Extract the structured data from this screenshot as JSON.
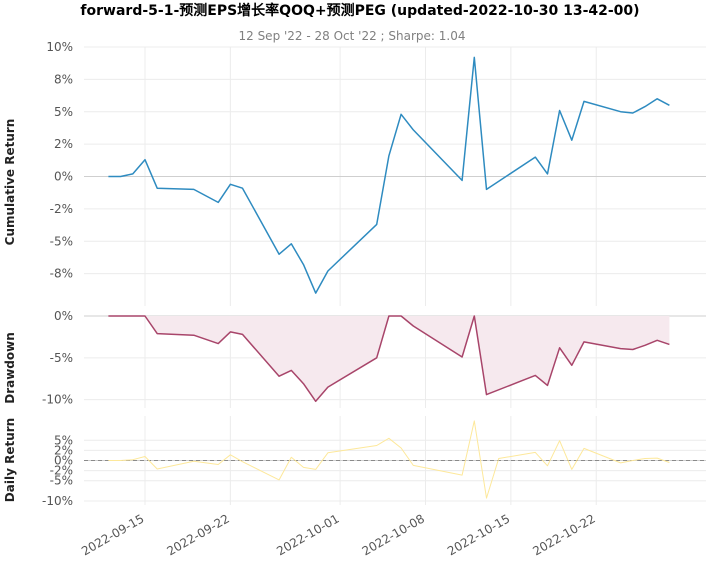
{
  "chart_data": {
    "type": "line",
    "title": "forward-5-1-预测EPS增长率QOQ+预测PEG (updated-2022-10-30 13-42-00)",
    "subtitle": "12 Sep '22 - 28 Oct '22 ;  Sharpe: 1.04",
    "x_ticks": [
      "2022-09-15",
      "2022-09-22",
      "2022-10-01",
      "2022-10-08",
      "2022-10-15",
      "2022-10-22"
    ],
    "x_range": [
      "2022-09-10",
      "2022-10-31"
    ],
    "panels": [
      {
        "name": "cumulative",
        "ylabel": "Cumulative Return",
        "ylim": [
          -0.1,
          0.1
        ],
        "y_ticks": [
          0.1,
          0.075,
          0.05,
          0.025,
          0.0,
          -0.025,
          -0.05,
          -0.075
        ],
        "y_tick_labels": [
          "10%",
          "8%",
          "5%",
          "2%",
          "0%",
          "-2%",
          "-5%",
          "-8%"
        ],
        "color": "#2e8bc0",
        "points": [
          [
            "2022-09-12",
            0.0
          ],
          [
            "2022-09-13",
            0.0
          ],
          [
            "2022-09-14",
            0.002
          ],
          [
            "2022-09-15",
            0.013
          ],
          [
            "2022-09-16",
            -0.009
          ],
          [
            "2022-09-19",
            -0.01
          ],
          [
            "2022-09-21",
            -0.02
          ],
          [
            "2022-09-22",
            -0.006
          ],
          [
            "2022-09-23",
            -0.009
          ],
          [
            "2022-09-26",
            -0.06
          ],
          [
            "2022-09-27",
            -0.052
          ],
          [
            "2022-09-28",
            -0.068
          ],
          [
            "2022-09-29",
            -0.09
          ],
          [
            "2022-09-30",
            -0.073
          ],
          [
            "2022-10-04",
            -0.037
          ],
          [
            "2022-10-05",
            0.016
          ],
          [
            "2022-10-06",
            0.048
          ],
          [
            "2022-10-07",
            0.036
          ],
          [
            "2022-10-11",
            -0.003
          ],
          [
            "2022-10-12",
            0.092
          ],
          [
            "2022-10-13",
            -0.01
          ],
          [
            "2022-10-17",
            0.015
          ],
          [
            "2022-10-18",
            0.002
          ],
          [
            "2022-10-19",
            0.051
          ],
          [
            "2022-10-20",
            0.028
          ],
          [
            "2022-10-21",
            0.058
          ],
          [
            "2022-10-24",
            0.05
          ],
          [
            "2022-10-25",
            0.049
          ],
          [
            "2022-10-26",
            0.054
          ],
          [
            "2022-10-27",
            0.06
          ],
          [
            "2022-10-28",
            0.055
          ]
        ]
      },
      {
        "name": "drawdown",
        "ylabel": "Drawdown",
        "ylim": [
          -0.11,
          0.0
        ],
        "y_ticks": [
          0.0,
          -0.05,
          -0.1
        ],
        "y_tick_labels": [
          "0%",
          "-5%",
          "-10%"
        ],
        "color": "#a8456a",
        "fill": "#f6e9ee",
        "points": [
          [
            "2022-09-12",
            0.0
          ],
          [
            "2022-09-13",
            0.0
          ],
          [
            "2022-09-14",
            0.0
          ],
          [
            "2022-09-15",
            0.0
          ],
          [
            "2022-09-16",
            -0.021
          ],
          [
            "2022-09-19",
            -0.023
          ],
          [
            "2022-09-21",
            -0.033
          ],
          [
            "2022-09-22",
            -0.019
          ],
          [
            "2022-09-23",
            -0.022
          ],
          [
            "2022-09-26",
            -0.072
          ],
          [
            "2022-09-27",
            -0.065
          ],
          [
            "2022-09-28",
            -0.081
          ],
          [
            "2022-09-29",
            -0.102
          ],
          [
            "2022-09-30",
            -0.085
          ],
          [
            "2022-10-04",
            -0.05
          ],
          [
            "2022-10-05",
            0.0
          ],
          [
            "2022-10-06",
            0.0
          ],
          [
            "2022-10-07",
            -0.012
          ],
          [
            "2022-10-11",
            -0.049
          ],
          [
            "2022-10-12",
            0.0
          ],
          [
            "2022-10-13",
            -0.094
          ],
          [
            "2022-10-17",
            -0.071
          ],
          [
            "2022-10-18",
            -0.083
          ],
          [
            "2022-10-19",
            -0.038
          ],
          [
            "2022-10-20",
            -0.059
          ],
          [
            "2022-10-21",
            -0.031
          ],
          [
            "2022-10-24",
            -0.039
          ],
          [
            "2022-10-25",
            -0.04
          ],
          [
            "2022-10-26",
            -0.035
          ],
          [
            "2022-10-27",
            -0.029
          ],
          [
            "2022-10-28",
            -0.034
          ]
        ]
      },
      {
        "name": "daily",
        "ylabel": "Daily Return",
        "ylim": [
          -0.11,
          0.11
        ],
        "y_ticks": [
          0.05,
          0.025,
          0.0,
          -0.025,
          -0.05,
          -0.1
        ],
        "y_tick_labels": [
          "5%",
          "2%",
          "0%",
          "-2%",
          "-5%",
          "-10%"
        ],
        "color": "#fde89a",
        "points": [
          [
            "2022-09-12",
            0.0
          ],
          [
            "2022-09-13",
            0.0
          ],
          [
            "2022-09-14",
            0.002
          ],
          [
            "2022-09-15",
            0.01
          ],
          [
            "2022-09-16",
            -0.021
          ],
          [
            "2022-09-19",
            -0.002
          ],
          [
            "2022-09-21",
            -0.01
          ],
          [
            "2022-09-22",
            0.014
          ],
          [
            "2022-09-23",
            -0.003
          ],
          [
            "2022-09-26",
            -0.048
          ],
          [
            "2022-09-27",
            0.008
          ],
          [
            "2022-09-28",
            -0.017
          ],
          [
            "2022-09-29",
            -0.022
          ],
          [
            "2022-09-30",
            0.019
          ],
          [
            "2022-10-04",
            0.037
          ],
          [
            "2022-10-05",
            0.055
          ],
          [
            "2022-10-06",
            0.031
          ],
          [
            "2022-10-07",
            -0.012
          ],
          [
            "2022-10-11",
            -0.036
          ],
          [
            "2022-10-12",
            0.098
          ],
          [
            "2022-10-13",
            -0.093
          ],
          [
            "2022-10-14",
            0.005
          ],
          [
            "2022-10-17",
            0.02
          ],
          [
            "2022-10-18",
            -0.013
          ],
          [
            "2022-10-19",
            0.049
          ],
          [
            "2022-10-20",
            -0.022
          ],
          [
            "2022-10-21",
            0.03
          ],
          [
            "2022-10-24",
            -0.006
          ],
          [
            "2022-10-25",
            0.0
          ],
          [
            "2022-10-26",
            0.005
          ],
          [
            "2022-10-27",
            0.006
          ],
          [
            "2022-10-28",
            -0.005
          ]
        ]
      }
    ],
    "grid": true,
    "legend": false
  }
}
